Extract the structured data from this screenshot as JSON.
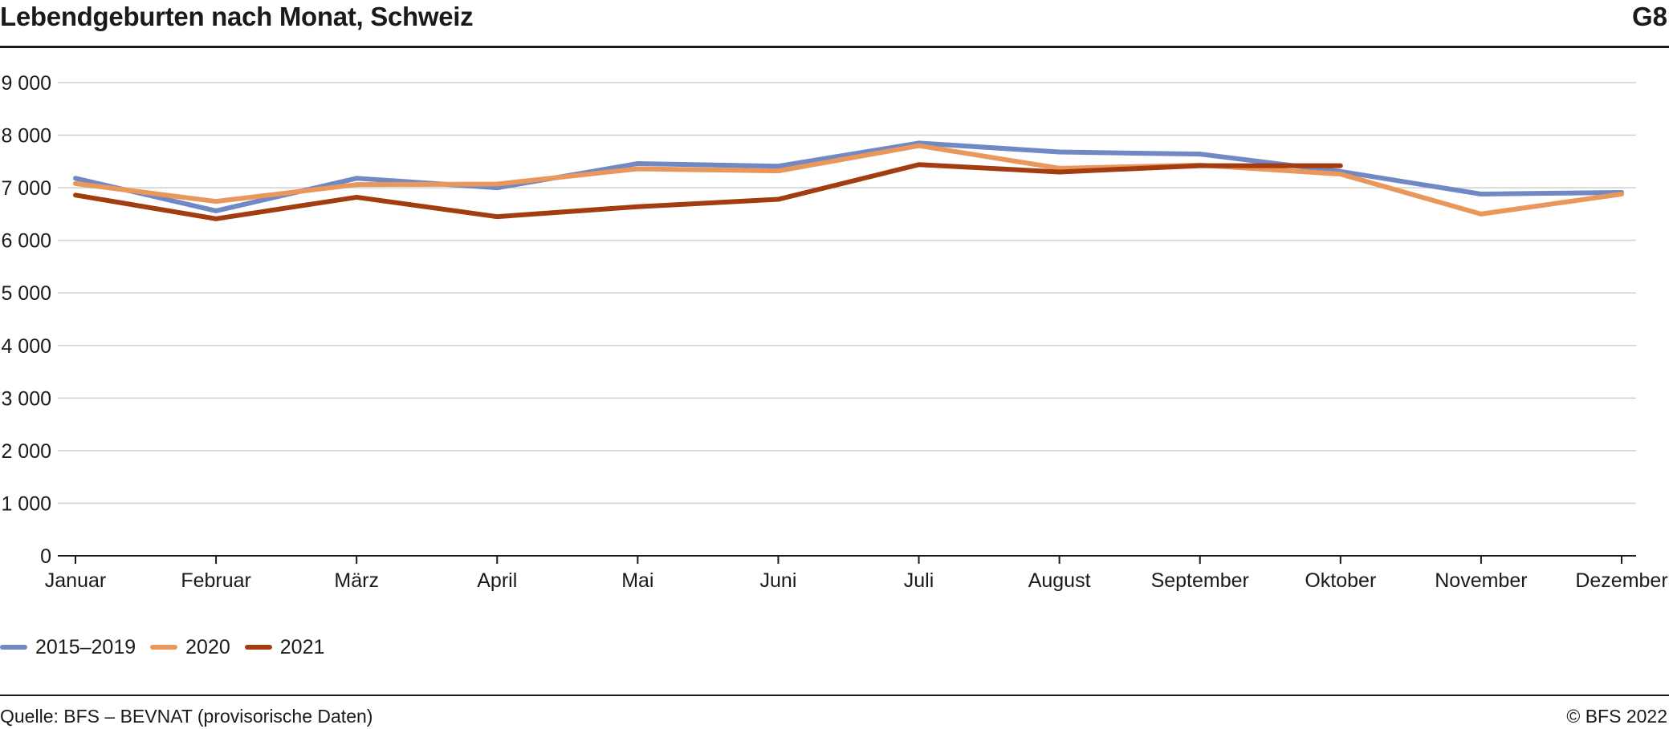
{
  "header": {
    "title": "Lebendgeburten nach Monat, Schweiz",
    "figure_id": "G8"
  },
  "footer": {
    "source": "Quelle: BFS – BEVNAT (provisorische Daten)",
    "copyright": "© BFS 2022"
  },
  "chart_data": {
    "type": "line",
    "title": "Lebendgeburten nach Monat, Schweiz",
    "xlabel": "",
    "ylabel": "",
    "ylim": [
      0,
      9000
    ],
    "yticks": [
      0,
      1000,
      2000,
      3000,
      4000,
      5000,
      6000,
      7000,
      8000,
      9000
    ],
    "ytick_labels": [
      "0",
      "1 000",
      "2 000",
      "3 000",
      "4 000",
      "5 000",
      "6 000",
      "7 000",
      "8 000",
      "9 000"
    ],
    "grid": "horizontal",
    "legend_position": "bottom-left",
    "categories": [
      "Januar",
      "Februar",
      "März",
      "April",
      "Mai",
      "Juni",
      "Juli",
      "August",
      "September",
      "Oktober",
      "November",
      "Dezember"
    ],
    "series": [
      {
        "name": "2015–2019",
        "color": "#7088c4",
        "values": [
          7180,
          6560,
          7180,
          7000,
          7460,
          7410,
          7850,
          7680,
          7640,
          7310,
          6880,
          6910
        ]
      },
      {
        "name": "2020",
        "color": "#e9975a",
        "values": [
          7080,
          6740,
          7060,
          7070,
          7360,
          7320,
          7800,
          7370,
          7430,
          7260,
          6500,
          6880
        ]
      },
      {
        "name": "2021",
        "color": "#a33c10",
        "values": [
          6860,
          6410,
          6820,
          6450,
          6640,
          6780,
          7440,
          7300,
          7420,
          7420,
          null,
          null
        ]
      }
    ]
  }
}
